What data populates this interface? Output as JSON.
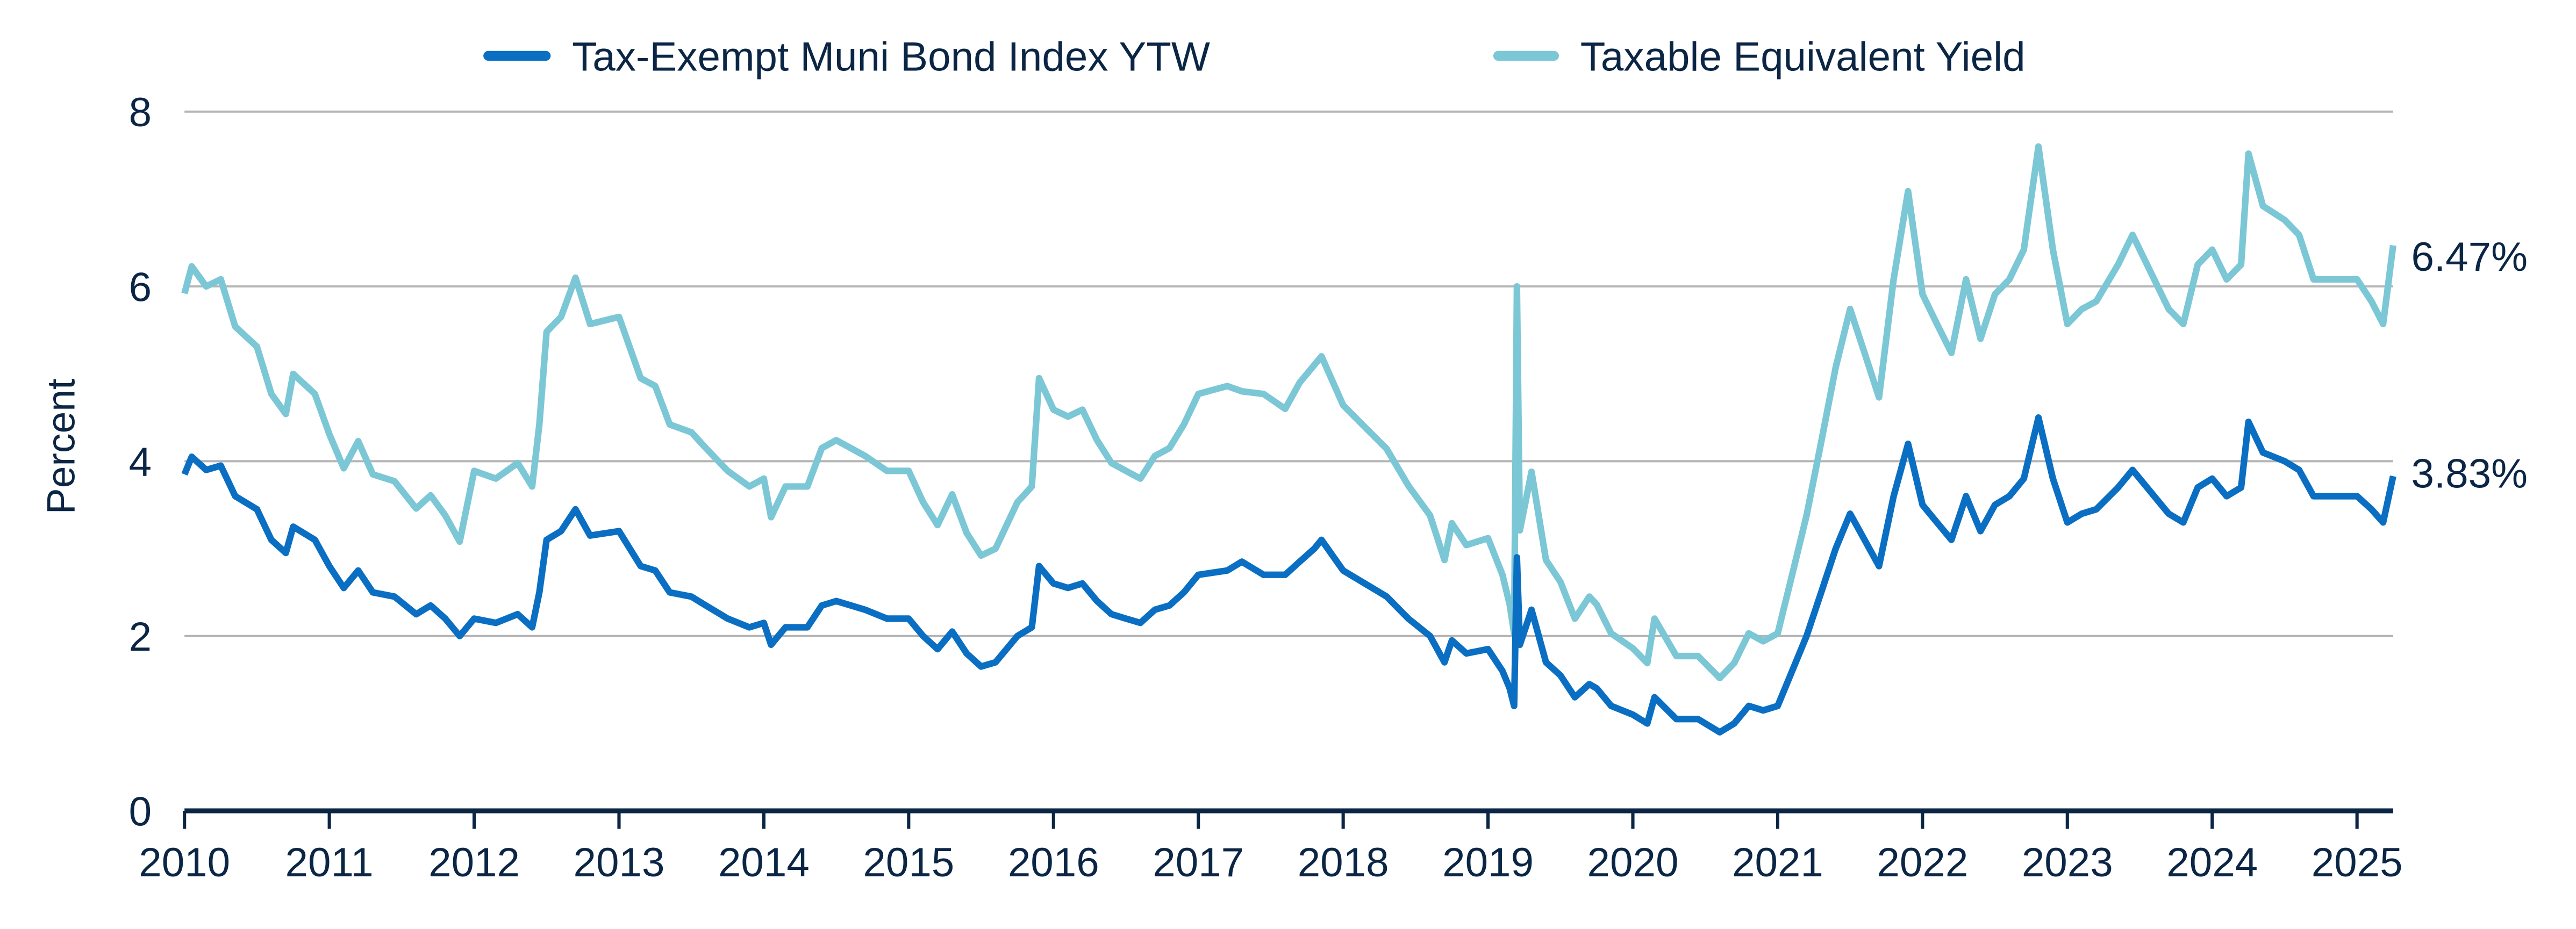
{
  "chart_data": {
    "type": "line",
    "title": "",
    "xlabel": "",
    "ylabel": "Percent",
    "xlim": [
      2010,
      2025.3
    ],
    "ylim": [
      0,
      8
    ],
    "x_ticks": [
      "2010",
      "2011",
      "2012",
      "2013",
      "2014",
      "2015",
      "2016",
      "2017",
      "2018",
      "2019",
      "2020",
      "2021",
      "2022",
      "2023",
      "2024",
      "2025"
    ],
    "y_ticks": [
      "0",
      "2",
      "4",
      "6",
      "8"
    ],
    "grid": "horizontal",
    "legend_position": "top",
    "series": [
      {
        "name": "Tax-Exempt Muni Bond Index YTW",
        "color": "#0a6fc2",
        "end_label": "3.83%",
        "points": [
          [
            2010.0,
            3.85
          ],
          [
            2010.05,
            4.05
          ],
          [
            2010.15,
            3.9
          ],
          [
            2010.25,
            3.95
          ],
          [
            2010.35,
            3.6
          ],
          [
            2010.5,
            3.45
          ],
          [
            2010.6,
            3.1
          ],
          [
            2010.7,
            2.95
          ],
          [
            2010.75,
            3.25
          ],
          [
            2010.9,
            3.1
          ],
          [
            2011.0,
            2.8
          ],
          [
            2011.1,
            2.55
          ],
          [
            2011.2,
            2.75
          ],
          [
            2011.3,
            2.5
          ],
          [
            2011.45,
            2.45
          ],
          [
            2011.6,
            2.25
          ],
          [
            2011.7,
            2.35
          ],
          [
            2011.8,
            2.2
          ],
          [
            2011.9,
            2.0
          ],
          [
            2012.0,
            2.2
          ],
          [
            2012.15,
            2.15
          ],
          [
            2012.3,
            2.25
          ],
          [
            2012.4,
            2.1
          ],
          [
            2012.45,
            2.5
          ],
          [
            2012.5,
            3.1
          ],
          [
            2012.6,
            3.2
          ],
          [
            2012.7,
            3.45
          ],
          [
            2012.8,
            3.15
          ],
          [
            2013.0,
            3.2
          ],
          [
            2013.15,
            2.8
          ],
          [
            2013.25,
            2.75
          ],
          [
            2013.35,
            2.5
          ],
          [
            2013.5,
            2.45
          ],
          [
            2013.6,
            2.35
          ],
          [
            2013.75,
            2.2
          ],
          [
            2013.9,
            2.1
          ],
          [
            2014.0,
            2.15
          ],
          [
            2014.05,
            1.9
          ],
          [
            2014.15,
            2.1
          ],
          [
            2014.3,
            2.1
          ],
          [
            2014.4,
            2.35
          ],
          [
            2014.5,
            2.4
          ],
          [
            2014.7,
            2.3
          ],
          [
            2014.85,
            2.2
          ],
          [
            2015.0,
            2.2
          ],
          [
            2015.1,
            2.0
          ],
          [
            2015.2,
            1.85
          ],
          [
            2015.3,
            2.05
          ],
          [
            2015.4,
            1.8
          ],
          [
            2015.5,
            1.65
          ],
          [
            2015.6,
            1.7
          ],
          [
            2015.75,
            2.0
          ],
          [
            2015.85,
            2.1
          ],
          [
            2015.9,
            2.8
          ],
          [
            2016.0,
            2.6
          ],
          [
            2016.1,
            2.55
          ],
          [
            2016.2,
            2.6
          ],
          [
            2016.3,
            2.4
          ],
          [
            2016.4,
            2.25
          ],
          [
            2016.5,
            2.2
          ],
          [
            2016.6,
            2.15
          ],
          [
            2016.7,
            2.3
          ],
          [
            2016.8,
            2.35
          ],
          [
            2016.9,
            2.5
          ],
          [
            2017.0,
            2.7
          ],
          [
            2017.2,
            2.75
          ],
          [
            2017.3,
            2.85
          ],
          [
            2017.45,
            2.7
          ],
          [
            2017.6,
            2.7
          ],
          [
            2017.7,
            2.85
          ],
          [
            2017.8,
            3.0
          ],
          [
            2017.85,
            3.1
          ],
          [
            2018.0,
            2.75
          ],
          [
            2018.15,
            2.6
          ],
          [
            2018.3,
            2.45
          ],
          [
            2018.45,
            2.2
          ],
          [
            2018.6,
            2.0
          ],
          [
            2018.7,
            1.7
          ],
          [
            2018.75,
            1.95
          ],
          [
            2018.85,
            1.8
          ],
          [
            2019.0,
            1.85
          ],
          [
            2019.1,
            1.6
          ],
          [
            2019.15,
            1.4
          ],
          [
            2019.18,
            1.2
          ],
          [
            2019.2,
            2.9
          ],
          [
            2019.22,
            1.9
          ],
          [
            2019.3,
            2.3
          ],
          [
            2019.4,
            1.7
          ],
          [
            2019.5,
            1.55
          ],
          [
            2019.6,
            1.3
          ],
          [
            2019.7,
            1.45
          ],
          [
            2019.75,
            1.4
          ],
          [
            2019.85,
            1.2
          ],
          [
            2020.0,
            1.1
          ],
          [
            2020.1,
            1.0
          ],
          [
            2020.15,
            1.3
          ],
          [
            2020.3,
            1.05
          ],
          [
            2020.45,
            1.05
          ],
          [
            2020.6,
            0.9
          ],
          [
            2020.7,
            1.0
          ],
          [
            2020.8,
            1.2
          ],
          [
            2020.9,
            1.15
          ],
          [
            2021.0,
            1.2
          ],
          [
            2021.1,
            1.6
          ],
          [
            2021.2,
            2.0
          ],
          [
            2021.3,
            2.5
          ],
          [
            2021.4,
            3.0
          ],
          [
            2021.5,
            3.4
          ],
          [
            2021.6,
            3.1
          ],
          [
            2021.7,
            2.8
          ],
          [
            2021.8,
            3.6
          ],
          [
            2021.9,
            4.2
          ],
          [
            2022.0,
            3.5
          ],
          [
            2022.1,
            3.3
          ],
          [
            2022.2,
            3.1
          ],
          [
            2022.3,
            3.6
          ],
          [
            2022.4,
            3.2
          ],
          [
            2022.5,
            3.5
          ],
          [
            2022.6,
            3.6
          ],
          [
            2022.7,
            3.8
          ],
          [
            2022.8,
            4.5
          ],
          [
            2022.9,
            3.8
          ],
          [
            2023.0,
            3.3
          ],
          [
            2023.1,
            3.4
          ],
          [
            2023.2,
            3.45
          ],
          [
            2023.35,
            3.7
          ],
          [
            2023.45,
            3.9
          ],
          [
            2023.6,
            3.6
          ],
          [
            2023.7,
            3.4
          ],
          [
            2023.8,
            3.3
          ],
          [
            2023.9,
            3.7
          ],
          [
            2024.0,
            3.8
          ],
          [
            2024.1,
            3.6
          ],
          [
            2024.2,
            3.7
          ],
          [
            2024.25,
            4.45
          ],
          [
            2024.35,
            4.1
          ],
          [
            2024.5,
            4.0
          ],
          [
            2024.6,
            3.9
          ],
          [
            2024.7,
            3.6
          ],
          [
            2024.85,
            3.6
          ],
          [
            2025.0,
            3.6
          ],
          [
            2025.1,
            3.45
          ],
          [
            2025.18,
            3.3
          ],
          [
            2025.25,
            3.83
          ]
        ]
      },
      {
        "name": "Taxable Equivalent Yield",
        "color": "#7cc7d6",
        "end_label": "6.47%",
        "points": [
          [
            2010.0,
            5.92
          ],
          [
            2010.05,
            6.23
          ],
          [
            2010.15,
            6.0
          ],
          [
            2010.25,
            6.08
          ],
          [
            2010.35,
            5.54
          ],
          [
            2010.5,
            5.31
          ],
          [
            2010.6,
            4.77
          ],
          [
            2010.7,
            4.54
          ],
          [
            2010.75,
            5.0
          ],
          [
            2010.9,
            4.77
          ],
          [
            2011.0,
            4.31
          ],
          [
            2011.1,
            3.92
          ],
          [
            2011.2,
            4.23
          ],
          [
            2011.3,
            3.85
          ],
          [
            2011.45,
            3.77
          ],
          [
            2011.6,
            3.46
          ],
          [
            2011.7,
            3.61
          ],
          [
            2011.8,
            3.38
          ],
          [
            2011.9,
            3.08
          ],
          [
            2012.0,
            3.89
          ],
          [
            2012.15,
            3.8
          ],
          [
            2012.3,
            3.98
          ],
          [
            2012.4,
            3.71
          ],
          [
            2012.45,
            4.42
          ],
          [
            2012.5,
            5.48
          ],
          [
            2012.6,
            5.65
          ],
          [
            2012.7,
            6.1
          ],
          [
            2012.8,
            5.57
          ],
          [
            2013.0,
            5.65
          ],
          [
            2013.15,
            4.95
          ],
          [
            2013.25,
            4.86
          ],
          [
            2013.35,
            4.42
          ],
          [
            2013.5,
            4.33
          ],
          [
            2013.6,
            4.15
          ],
          [
            2013.75,
            3.89
          ],
          [
            2013.9,
            3.71
          ],
          [
            2014.0,
            3.8
          ],
          [
            2014.05,
            3.36
          ],
          [
            2014.15,
            3.71
          ],
          [
            2014.3,
            3.71
          ],
          [
            2014.4,
            4.15
          ],
          [
            2014.5,
            4.24
          ],
          [
            2014.7,
            4.06
          ],
          [
            2014.85,
            3.89
          ],
          [
            2015.0,
            3.89
          ],
          [
            2015.1,
            3.53
          ],
          [
            2015.2,
            3.27
          ],
          [
            2015.3,
            3.62
          ],
          [
            2015.4,
            3.18
          ],
          [
            2015.5,
            2.92
          ],
          [
            2015.6,
            3.0
          ],
          [
            2015.75,
            3.53
          ],
          [
            2015.85,
            3.71
          ],
          [
            2015.9,
            4.95
          ],
          [
            2016.0,
            4.59
          ],
          [
            2016.1,
            4.51
          ],
          [
            2016.2,
            4.59
          ],
          [
            2016.3,
            4.24
          ],
          [
            2016.4,
            3.98
          ],
          [
            2016.5,
            3.89
          ],
          [
            2016.6,
            3.8
          ],
          [
            2016.7,
            4.06
          ],
          [
            2016.8,
            4.15
          ],
          [
            2016.9,
            4.42
          ],
          [
            2017.0,
            4.77
          ],
          [
            2017.2,
            4.86
          ],
          [
            2017.3,
            4.8
          ],
          [
            2017.45,
            4.77
          ],
          [
            2017.6,
            4.6
          ],
          [
            2017.7,
            4.9
          ],
          [
            2017.8,
            5.1
          ],
          [
            2017.85,
            5.2
          ],
          [
            2018.0,
            4.64
          ],
          [
            2018.15,
            4.39
          ],
          [
            2018.3,
            4.14
          ],
          [
            2018.45,
            3.72
          ],
          [
            2018.6,
            3.38
          ],
          [
            2018.7,
            2.87
          ],
          [
            2018.75,
            3.29
          ],
          [
            2018.85,
            3.04
          ],
          [
            2019.0,
            3.12
          ],
          [
            2019.1,
            2.7
          ],
          [
            2019.15,
            2.36
          ],
          [
            2019.18,
            2.03
          ],
          [
            2019.2,
            6.0
          ],
          [
            2019.22,
            3.21
          ],
          [
            2019.3,
            3.88
          ],
          [
            2019.4,
            2.87
          ],
          [
            2019.5,
            2.62
          ],
          [
            2019.6,
            2.2
          ],
          [
            2019.7,
            2.45
          ],
          [
            2019.75,
            2.36
          ],
          [
            2019.85,
            2.03
          ],
          [
            2020.0,
            1.86
          ],
          [
            2020.1,
            1.69
          ],
          [
            2020.15,
            2.2
          ],
          [
            2020.3,
            1.77
          ],
          [
            2020.45,
            1.77
          ],
          [
            2020.6,
            1.52
          ],
          [
            2020.7,
            1.69
          ],
          [
            2020.8,
            2.03
          ],
          [
            2020.9,
            1.94
          ],
          [
            2021.0,
            2.03
          ],
          [
            2021.1,
            2.7
          ],
          [
            2021.2,
            3.38
          ],
          [
            2021.3,
            4.22
          ],
          [
            2021.4,
            5.07
          ],
          [
            2021.5,
            5.74
          ],
          [
            2021.6,
            5.24
          ],
          [
            2021.7,
            4.73
          ],
          [
            2021.8,
            6.08
          ],
          [
            2021.9,
            7.09
          ],
          [
            2022.0,
            5.91
          ],
          [
            2022.1,
            5.57
          ],
          [
            2022.2,
            5.24
          ],
          [
            2022.3,
            6.08
          ],
          [
            2022.4,
            5.4
          ],
          [
            2022.5,
            5.91
          ],
          [
            2022.6,
            6.08
          ],
          [
            2022.7,
            6.42
          ],
          [
            2022.8,
            7.6
          ],
          [
            2022.9,
            6.42
          ],
          [
            2023.0,
            5.57
          ],
          [
            2023.1,
            5.74
          ],
          [
            2023.2,
            5.83
          ],
          [
            2023.35,
            6.25
          ],
          [
            2023.45,
            6.59
          ],
          [
            2023.6,
            6.08
          ],
          [
            2023.7,
            5.74
          ],
          [
            2023.8,
            5.57
          ],
          [
            2023.9,
            6.25
          ],
          [
            2024.0,
            6.42
          ],
          [
            2024.1,
            6.08
          ],
          [
            2024.2,
            6.25
          ],
          [
            2024.25,
            7.52
          ],
          [
            2024.35,
            6.92
          ],
          [
            2024.5,
            6.76
          ],
          [
            2024.6,
            6.59
          ],
          [
            2024.7,
            6.08
          ],
          [
            2024.85,
            6.08
          ],
          [
            2025.0,
            6.08
          ],
          [
            2025.1,
            5.83
          ],
          [
            2025.18,
            5.57
          ],
          [
            2025.25,
            6.47
          ]
        ]
      }
    ]
  }
}
